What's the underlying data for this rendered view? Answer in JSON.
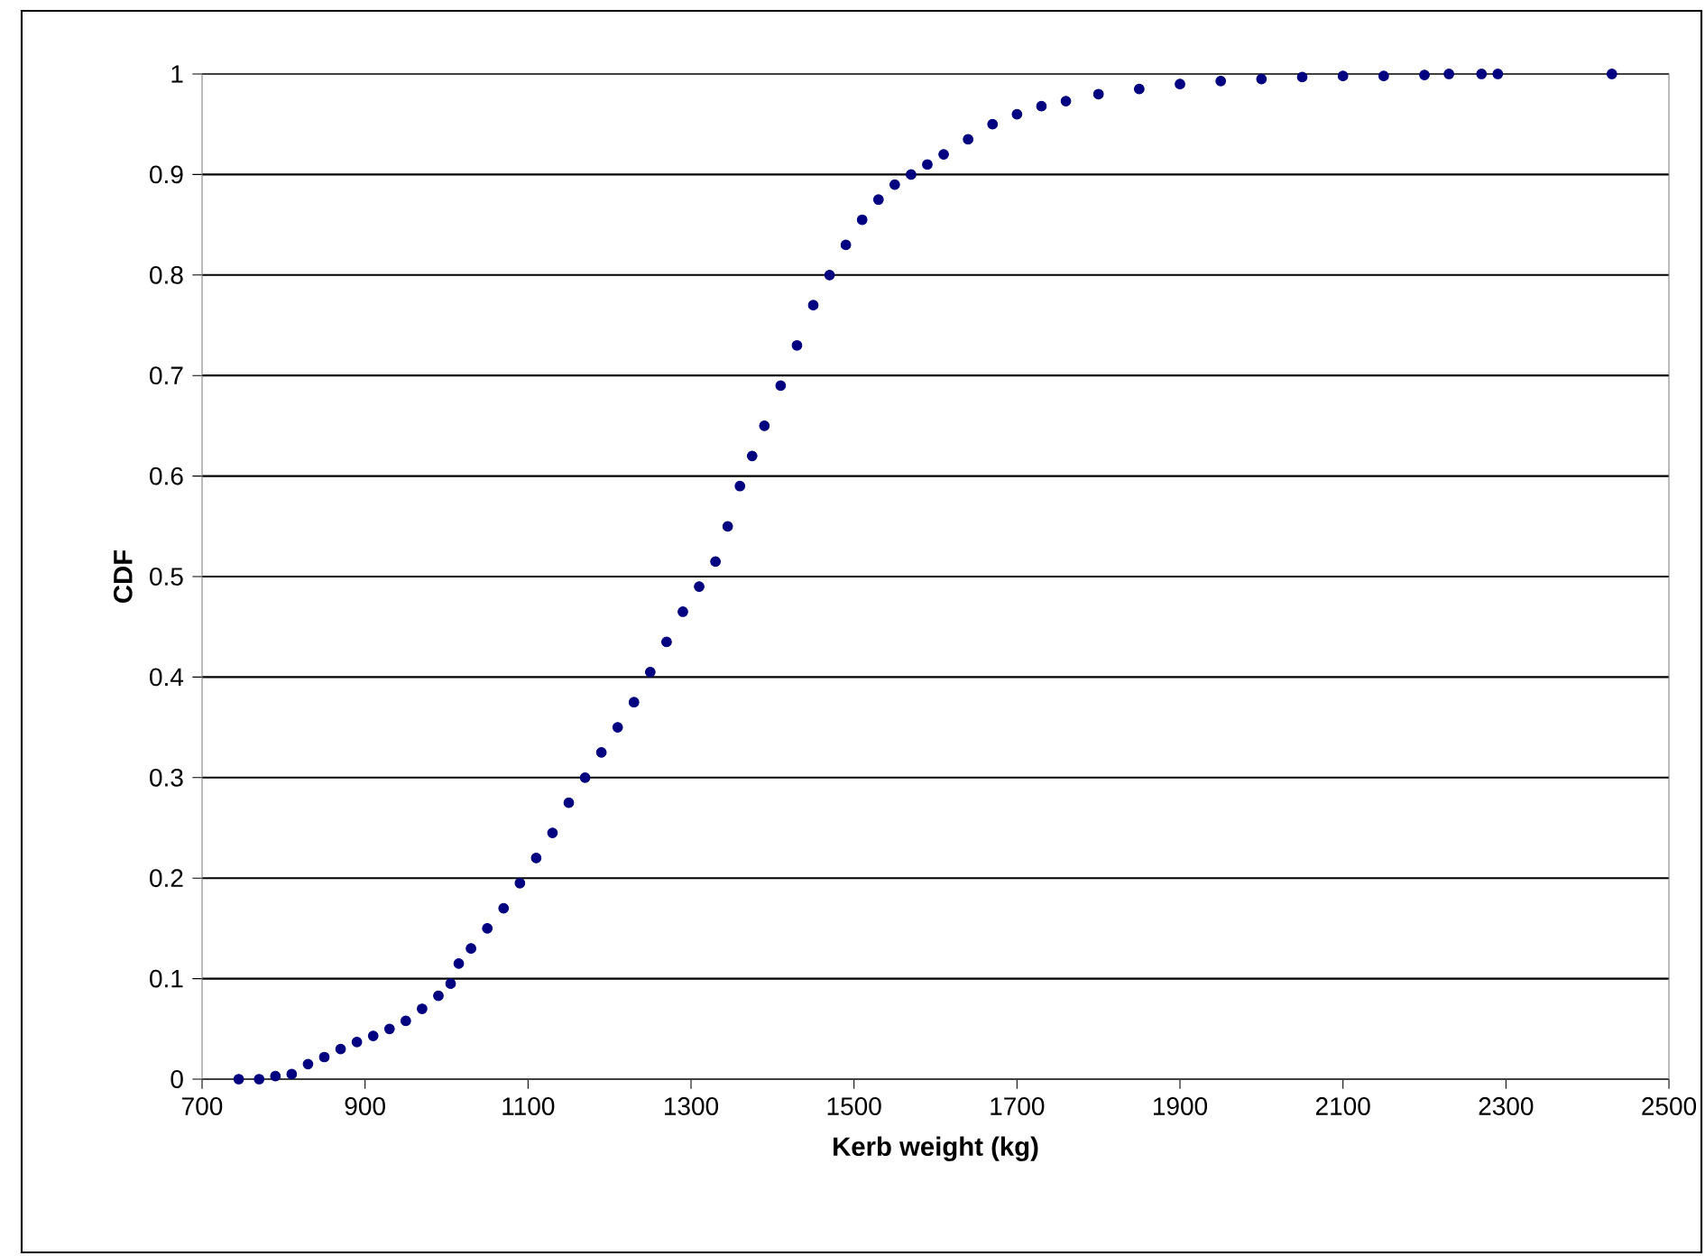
{
  "chart_data": {
    "type": "scatter",
    "xlabel": "Kerb weight (kg)",
    "ylabel": "CDF",
    "xlim": [
      700,
      2500
    ],
    "xticks": [
      700,
      900,
      1100,
      1300,
      1500,
      1700,
      1900,
      2100,
      2300,
      2500
    ],
    "ylim": [
      0,
      1
    ],
    "yticks": [
      0,
      0.1,
      0.2,
      0.3,
      0.4,
      0.5,
      0.6,
      0.7,
      0.8,
      0.9,
      1
    ],
    "grid": "y",
    "series": [
      {
        "color": "#000080",
        "x": [
          745,
          770,
          790,
          810,
          830,
          850,
          870,
          890,
          910,
          930,
          950,
          970,
          990,
          1005,
          1015,
          1030,
          1050,
          1070,
          1090,
          1110,
          1130,
          1150,
          1170,
          1190,
          1210,
          1230,
          1250,
          1270,
          1290,
          1310,
          1330,
          1345,
          1360,
          1375,
          1390,
          1410,
          1430,
          1450,
          1470,
          1490,
          1510,
          1530,
          1550,
          1570,
          1590,
          1610,
          1640,
          1670,
          1700,
          1730,
          1760,
          1800,
          1850,
          1900,
          1950,
          2000,
          2050,
          2100,
          2150,
          2200,
          2230,
          2270,
          2290,
          2430
        ],
        "values": [
          0,
          0,
          0.003,
          0.005,
          0.015,
          0.022,
          0.03,
          0.037,
          0.043,
          0.05,
          0.058,
          0.07,
          0.083,
          0.095,
          0.115,
          0.13,
          0.15,
          0.17,
          0.195,
          0.22,
          0.245,
          0.275,
          0.3,
          0.325,
          0.35,
          0.375,
          0.405,
          0.435,
          0.465,
          0.49,
          0.515,
          0.55,
          0.59,
          0.62,
          0.65,
          0.69,
          0.73,
          0.77,
          0.8,
          0.83,
          0.855,
          0.875,
          0.89,
          0.9,
          0.91,
          0.92,
          0.935,
          0.95,
          0.96,
          0.968,
          0.973,
          0.98,
          0.985,
          0.99,
          0.993,
          0.995,
          0.997,
          0.998,
          0.998,
          0.999,
          1,
          1,
          1,
          1
        ]
      }
    ]
  }
}
